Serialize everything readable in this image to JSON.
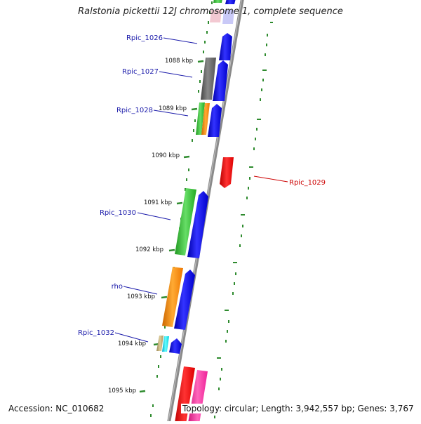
{
  "title": "Ralstonia pickettii 12J chromosome 1, complete sequence",
  "accession": "Accession: NC_010682",
  "topology": "Topology: circular; Length: 3,942,557 bp; Genes: 3,767",
  "scale_labels": [
    "1088 kbp",
    "1089 kbp",
    "1090 kbp",
    "1091 kbp",
    "1092 kbp",
    "1093 kbp",
    "1094 kbp",
    "1095 kbp"
  ],
  "gene_labels": [
    "Rpic_1026",
    "Rpic_1027",
    "Rpic_1028",
    "Rpic_1029",
    "Rpic_1030",
    "rho",
    "Rpic_1032"
  ],
  "colors": {
    "backbone": "#8a8a8a",
    "ticks": "#2e8b2e",
    "cds": "#0000ee",
    "label_blue": "#1a1aaa",
    "label_red": "#cc0000",
    "gray_feature": "#666666",
    "green_feature": "#33bb33",
    "orange_feature": "#ff8800",
    "cyan_feature": "#00ddee",
    "tan_feature": "#bba77a",
    "red_feature": "#ee0000",
    "pink_feature": "#ff3399"
  }
}
